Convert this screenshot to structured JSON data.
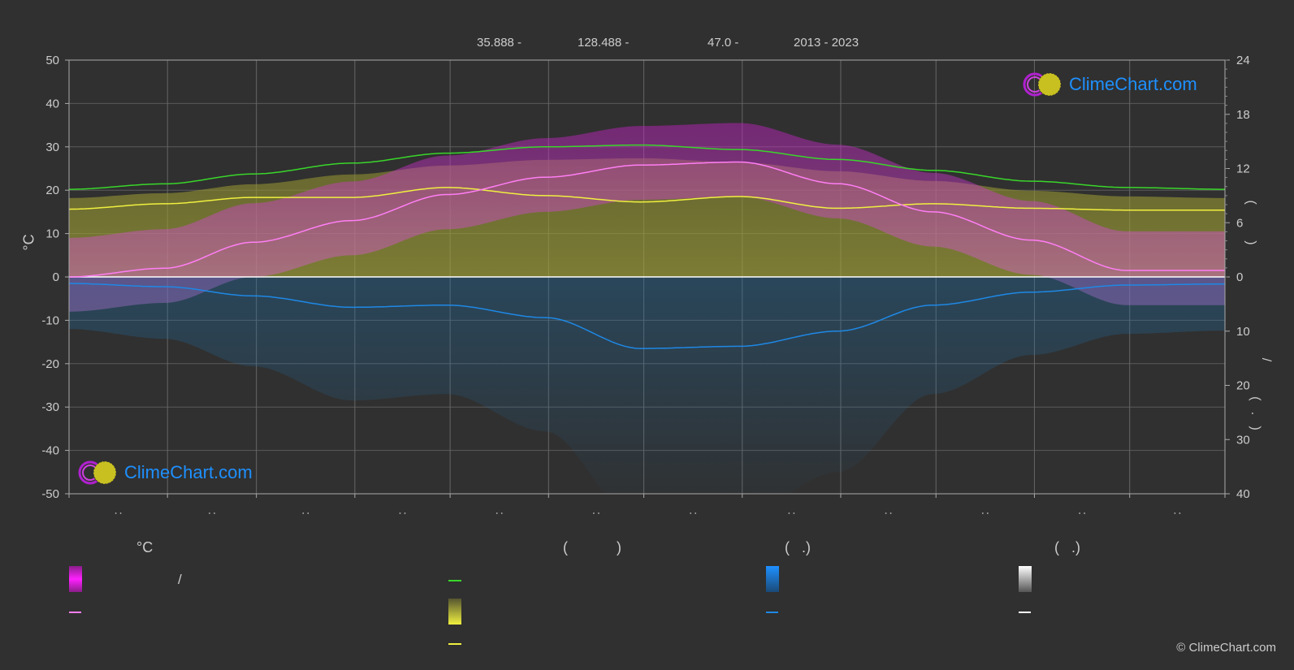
{
  "header": {
    "latitude": "35.888 -",
    "longitude": "128.488 -",
    "elevation": "47.0 -",
    "years": "2013 - 2023"
  },
  "axes": {
    "left_unit": "°C",
    "right_upper_glyph": "(          )",
    "right_lower_glyph_1": "/",
    "right_lower_glyph_2": "(   .   )"
  },
  "legend": {
    "temperature_heading": "°C",
    "sunshine_heading": "(            )",
    "rain_heading": "(   .)",
    "snow_heading": "(   .)",
    "temperature_slash": "/"
  },
  "logo_text": "ClimeChart.com",
  "copyright": "© ClimeChart.com",
  "colors": {
    "background": "#303030",
    "daylight": "#39d62a",
    "sunshine": "#f0f040",
    "temp_mean": "#ff7ef5",
    "precip_mean": "#1e88e5",
    "snow_mean": "#ffffff",
    "temp_band": "#d030c8",
    "sun_band": "#b8b840",
    "rain_band": "#1e6fa8"
  },
  "chart_data": {
    "type": "line",
    "x": [
      1,
      31,
      59,
      90,
      120,
      151,
      181,
      212,
      243,
      273,
      304,
      334,
      365
    ],
    "temp_axis": {
      "ylim": [
        -50,
        50
      ],
      "ticks": [
        50,
        40,
        30,
        20,
        10,
        0,
        -10,
        -20,
        -30,
        -40,
        -50
      ]
    },
    "sun_axis": {
      "ylim": [
        0,
        24
      ],
      "ticks": [
        24,
        18,
        12,
        6,
        0
      ]
    },
    "precip_axis": {
      "ylim": [
        0,
        40
      ],
      "ticks": [
        0,
        10,
        20,
        30,
        40
      ]
    },
    "series": [
      {
        "key": "daylight",
        "axis": "sun",
        "values": [
          9.7,
          10.3,
          11.4,
          12.6,
          13.7,
          14.4,
          14.6,
          14.1,
          13.0,
          11.8,
          10.6,
          9.9,
          9.7
        ]
      },
      {
        "key": "sunshine",
        "axis": "sun",
        "values": [
          7.5,
          8.1,
          8.8,
          8.8,
          9.9,
          9.0,
          8.3,
          8.9,
          7.6,
          8.1,
          7.6,
          7.4,
          7.4
        ]
      },
      {
        "key": "temp_mean",
        "axis": "temp",
        "values": [
          0.0,
          2.0,
          8.0,
          13.0,
          19.0,
          23.0,
          25.8,
          26.5,
          21.5,
          15.0,
          8.5,
          1.5,
          1.5
        ]
      },
      {
        "key": "precip_mean",
        "axis": "precip",
        "values": [
          1.2,
          1.8,
          3.5,
          5.6,
          5.2,
          7.5,
          13.2,
          12.8,
          10.0,
          5.2,
          2.8,
          1.5,
          1.3
        ]
      }
    ]
  }
}
